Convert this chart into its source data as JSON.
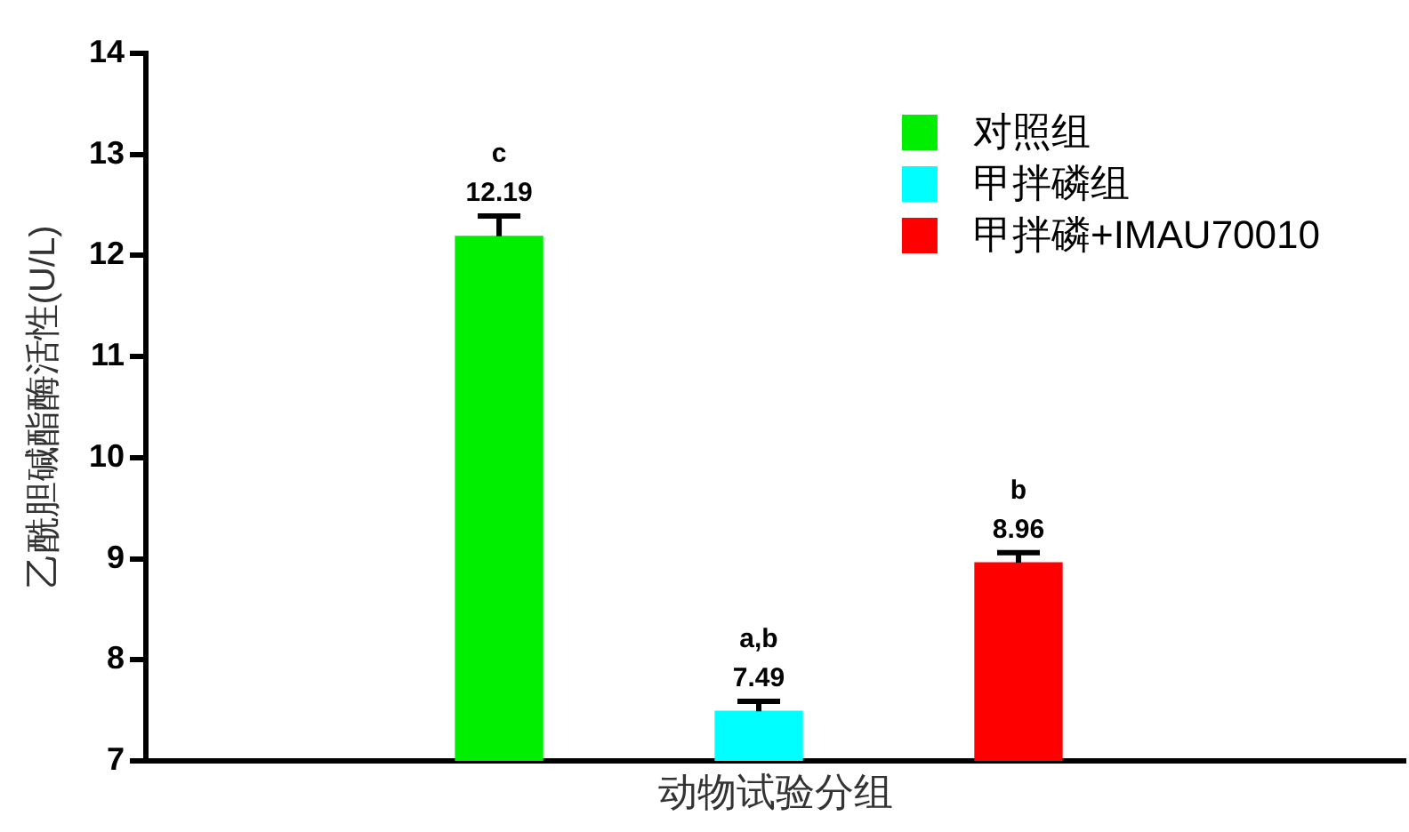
{
  "chart_data": {
    "type": "bar",
    "xlabel": "动物试验分组",
    "ylabel": "乙酰胆碱酯酶活性(U/L)",
    "categories": [
      null,
      null,
      null
    ],
    "series": [
      {
        "name": "对照组",
        "color": "#00ee00",
        "values": [
          12.19,
          null,
          null
        ],
        "errors": [
          0.2,
          null,
          null
        ]
      },
      {
        "name": "甲拌磷组",
        "color": "#00ffff",
        "values": [
          null,
          7.49,
          null
        ],
        "errors": [
          null,
          0.1,
          null
        ]
      },
      {
        "name": "甲拌磷+IMAU70010",
        "color": "#ff0000",
        "values": [
          null,
          null,
          8.96
        ],
        "errors": [
          null,
          null,
          0.1
        ]
      }
    ],
    "ylim": [
      7,
      14
    ],
    "yticks": [
      7,
      8,
      9,
      10,
      11,
      12,
      13,
      14
    ],
    "grid": false,
    "legend": "top right",
    "data_labels": true,
    "annotations": [
      "c",
      "a,b",
      "b"
    ]
  }
}
